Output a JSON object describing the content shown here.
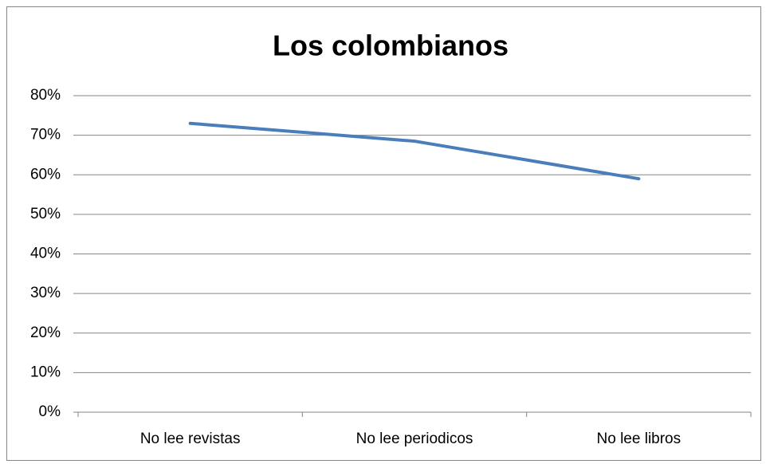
{
  "chart_data": {
    "type": "line",
    "title": "Los colombianos",
    "categories": [
      "No lee revistas",
      "No lee periodicos",
      "No lee libros"
    ],
    "series": [
      {
        "name": null,
        "color": "#4a7ebb",
        "values": [
          73,
          68.5,
          59
        ]
      }
    ],
    "ylim": [
      0,
      80
    ],
    "yticks": [
      {
        "value": 0,
        "label": "0%"
      },
      {
        "value": 10,
        "label": "10%"
      },
      {
        "value": 20,
        "label": "20%"
      },
      {
        "value": 30,
        "label": "30%"
      },
      {
        "value": 40,
        "label": "40%"
      },
      {
        "value": 50,
        "label": "50%"
      },
      {
        "value": 60,
        "label": "60%"
      },
      {
        "value": 70,
        "label": "70%"
      },
      {
        "value": 80,
        "label": "80%"
      }
    ],
    "grid": true,
    "legend": false
  }
}
